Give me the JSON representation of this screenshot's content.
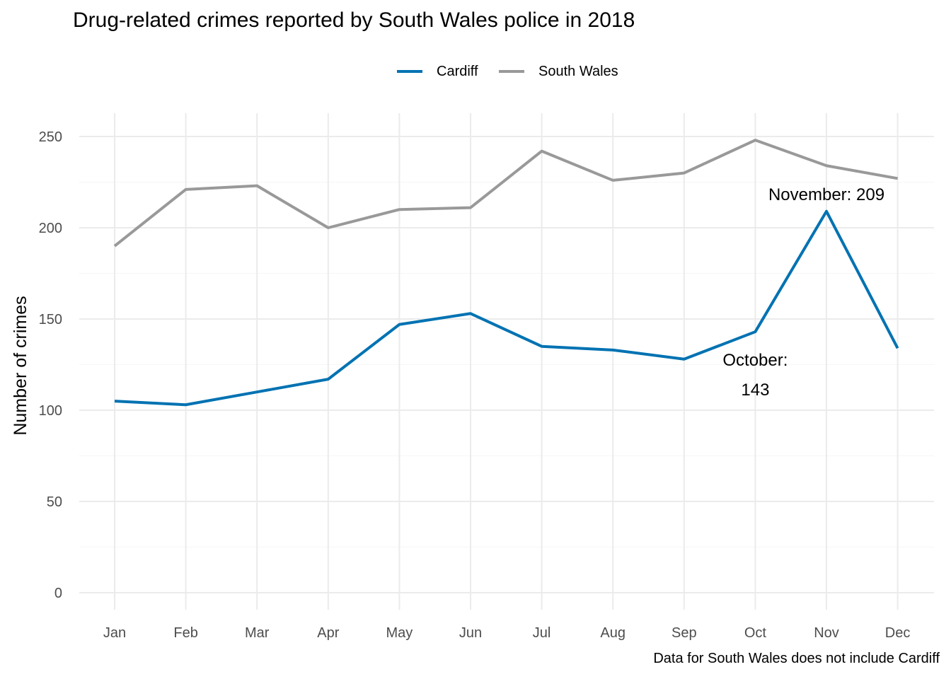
{
  "chart_data": {
    "type": "line",
    "title": "Drug-related crimes reported by South Wales police in 2018",
    "xlabel": "",
    "ylabel": "Number of crimes",
    "caption": "Data for South Wales does not include Cardiff",
    "categories": [
      "Jan",
      "Feb",
      "Mar",
      "Apr",
      "May",
      "Jun",
      "Jul",
      "Aug",
      "Sep",
      "Oct",
      "Nov",
      "Dec"
    ],
    "ylim": [
      0,
      260
    ],
    "yticks": [
      0,
      50,
      100,
      150,
      200,
      250
    ],
    "grid": true,
    "legend_position": "top",
    "series": [
      {
        "name": "Cardiff",
        "color": "#0072B2",
        "values": [
          105,
          103,
          110,
          117,
          147,
          153,
          135,
          133,
          128,
          143,
          209,
          134
        ]
      },
      {
        "name": "South Wales",
        "color": "#999999",
        "values": [
          190,
          221,
          223,
          200,
          210,
          211,
          242,
          226,
          230,
          248,
          234,
          227
        ]
      }
    ],
    "annotations": [
      {
        "category": "Nov",
        "series": "Cardiff",
        "lines": [
          "November: 209"
        ]
      },
      {
        "category": "Oct",
        "series": "Cardiff",
        "lines": [
          "October:",
          "143"
        ]
      }
    ]
  }
}
